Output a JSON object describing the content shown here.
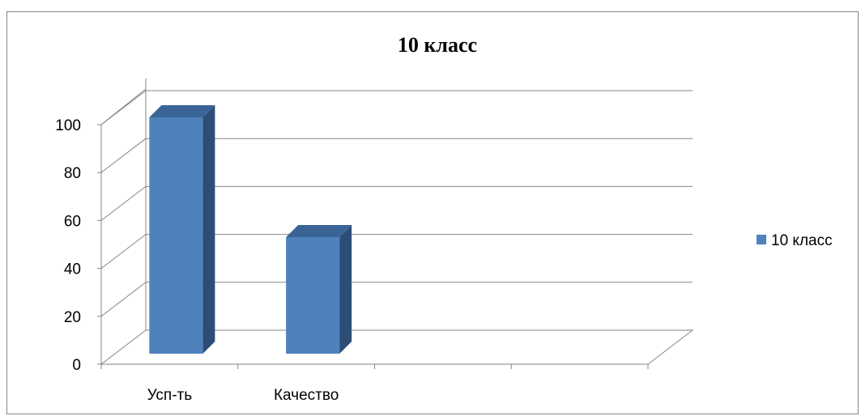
{
  "chart_data": {
    "type": "bar",
    "title": "10 класс",
    "categories": [
      "Усп-ть",
      "Качество"
    ],
    "series": [
      {
        "name": "10 класс",
        "values": [
          100,
          50
        ],
        "color": "#4F81BD"
      }
    ],
    "ylim": [
      0,
      100
    ],
    "yticks": [
      0,
      20,
      40,
      60,
      80,
      100
    ],
    "xlabel": "",
    "ylabel": "",
    "grid": true,
    "legend_position": "right",
    "style": "3d-column"
  }
}
